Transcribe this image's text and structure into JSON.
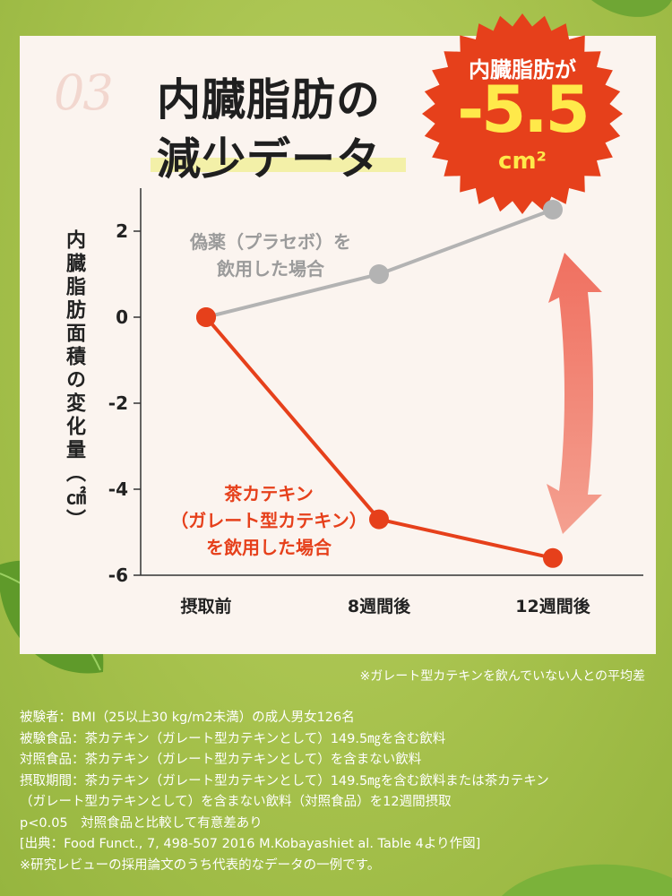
{
  "header": {
    "number": "03",
    "title_line1": "内臓脂肪の",
    "title_line2": "減少データ"
  },
  "badge": {
    "line1": "内臓脂肪が",
    "value": "-5.5",
    "unit": "cm²"
  },
  "chart_data": {
    "type": "line",
    "categories": [
      "摂取前",
      "8週間後",
      "12週間後"
    ],
    "ylabel": "内臓脂肪面積の変化量（㎠）",
    "ylim": [
      -6,
      3
    ],
    "yticks": [
      "2",
      "0",
      "-2",
      "-4",
      "-6"
    ],
    "series": [
      {
        "name": "偽薬（プラセボ）を飲用した場合",
        "name_lines": [
          "偽薬（プラセボ）を",
          "飲用した場合"
        ],
        "values": [
          0,
          1.0,
          2.5
        ],
        "color": "#b3b3b3"
      },
      {
        "name": "茶カテキン（ガレート型カテキン）を飲用した場合",
        "name_lines": [
          "茶カテキン",
          "（ガレート型カテキン）",
          "を飲用した場合"
        ],
        "values": [
          0,
          -4.7,
          -5.6
        ],
        "color": "#e6401b"
      }
    ]
  },
  "note": "※ガレート型カテキンを飲んでいない人との平均差",
  "footnotes": [
    "被験者：BMI（25以上30 kg/m2未満）の成人男女126名",
    "被験食品：茶カテキン（ガレート型カテキンとして）149.5㎎を含む飲料",
    "対照食品：茶カテキン（ガレート型カテキンとして）を含まない飲料",
    "摂取期間：茶カテキン（ガレート型カテキンとして）149.5㎎を含む飲料または茶カテキン",
    "（ガレート型カテキンとして）を含まない飲料（対照食品）を12週間摂取",
    "p<0.05　対照食品と比較して有意差あり",
    "[出典：Food Funct., 7, 498-507 2016 M.Kobayashiet al. Table 4より作図]",
    "※研究レビューの採用論文のうち代表的なデータの一例です。"
  ],
  "colors": {
    "accent": "#e6401b",
    "placebo": "#b3b3b3",
    "background": "#a7c150",
    "card": "#fbf4ef",
    "badge_text": "#ffe94a"
  }
}
